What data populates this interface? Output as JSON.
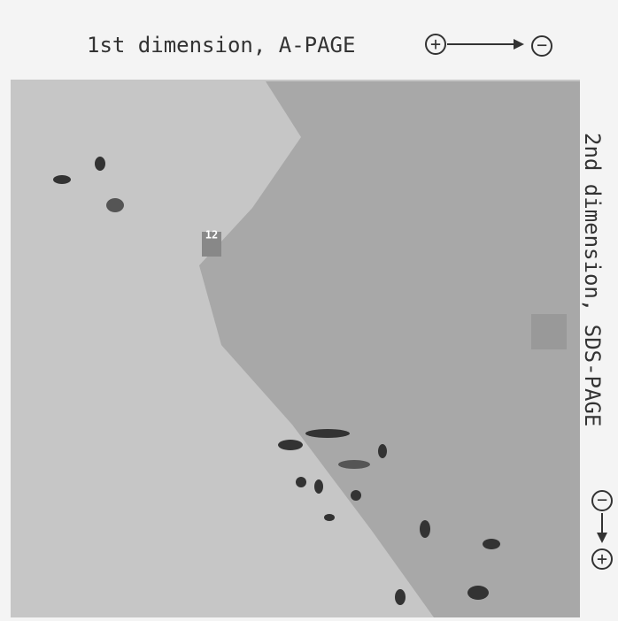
{
  "header": {
    "first_dimension": "1st dimension, A-PAGE",
    "first_start": "+",
    "first_end": "−",
    "second_dimension": "2nd dimension, SDS-PAGE",
    "second_start": "−",
    "second_end": "+"
  },
  "spots": {
    "label": "12"
  }
}
